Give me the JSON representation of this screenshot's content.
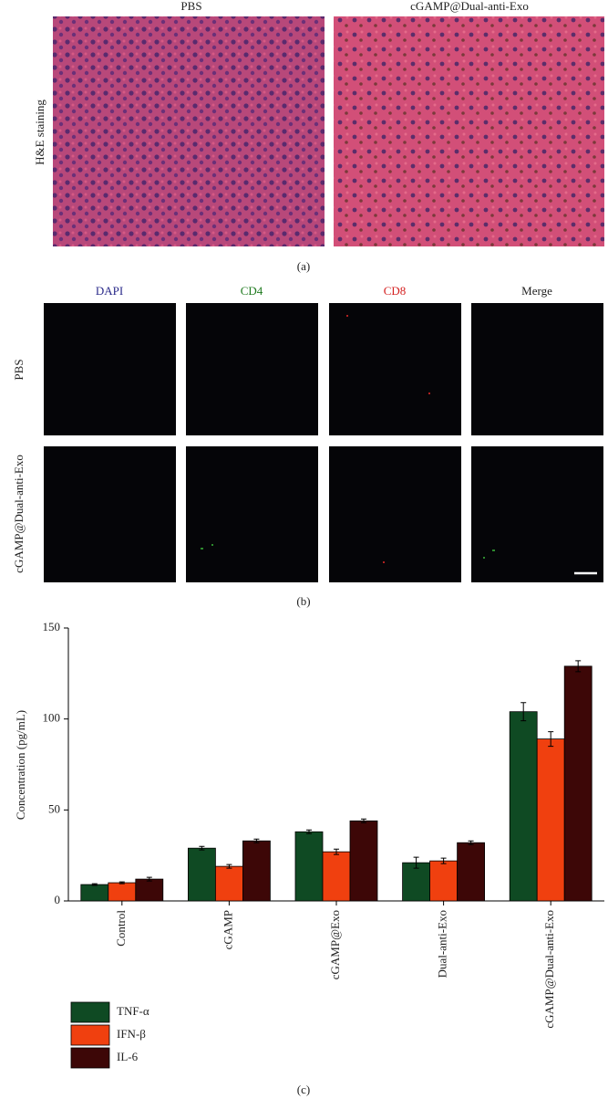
{
  "figure": {
    "panel_a": {
      "columns": [
        "PBS",
        "cGAMP@Dual-anti-Exo"
      ],
      "row_label": "H&E staining",
      "caption": "(a)"
    },
    "panel_b": {
      "columns": [
        "DAPI",
        "CD4",
        "CD8",
        "Merge"
      ],
      "rows": [
        "PBS",
        "cGAMP@Dual-anti-Exo"
      ],
      "caption": "(b)"
    },
    "panel_c": {
      "caption": "(c)"
    }
  },
  "chart_data": {
    "type": "bar",
    "y_label": "Concentration (pg/mL)",
    "categories": [
      "Control",
      "cGAMP",
      "cGAMP@Exo",
      "Dual-anti-Exo",
      "cGAMP@Dual-anti-Exo"
    ],
    "series": [
      {
        "name": "TNF-α",
        "color": "#0f4a23",
        "values": [
          9,
          29,
          38,
          21,
          104
        ],
        "errors": [
          0.5,
          1,
          1,
          3,
          5
        ]
      },
      {
        "name": "IFN-β",
        "color": "#f0400f",
        "values": [
          10,
          19,
          27,
          22,
          89
        ],
        "errors": [
          0.5,
          1,
          1.5,
          1.5,
          4
        ]
      },
      {
        "name": "IL-6",
        "color": "#3d0707",
        "values": [
          12,
          33,
          44,
          32,
          129
        ],
        "errors": [
          1,
          1,
          1,
          1,
          3
        ]
      }
    ],
    "ylim": [
      0,
      150
    ],
    "yticks": [
      0,
      50,
      100,
      150
    ],
    "legend": "bottom-left"
  }
}
